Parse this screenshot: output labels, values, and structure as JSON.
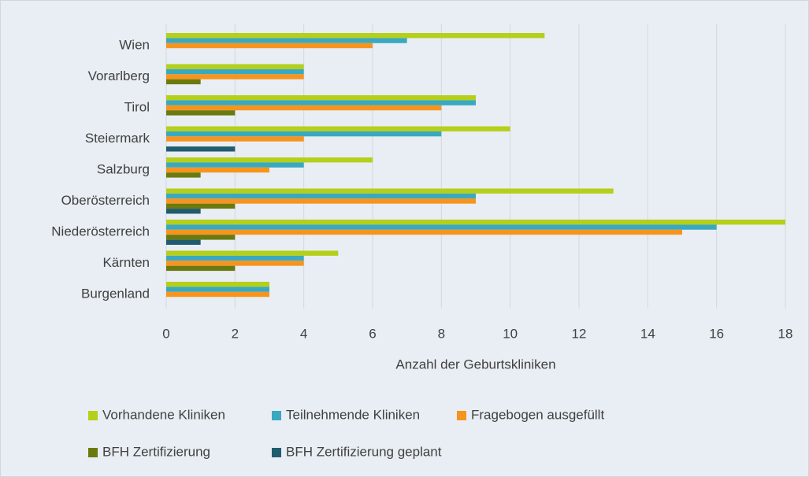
{
  "chart_data": {
    "type": "bar",
    "orientation": "horizontal",
    "x_label": "Anzahl der Geburtskliniken",
    "categories": [
      "Wien",
      "Vorarlberg",
      "Tirol",
      "Steiermark",
      "Salzburg",
      "Oberösterreich",
      "Niederösterreich",
      "Kärnten",
      "Burgenland"
    ],
    "series": [
      {
        "name": "Vorhandene Kliniken",
        "color": "#b5cf1a",
        "values": [
          11,
          4,
          9,
          10,
          6,
          13,
          18,
          5,
          3
        ]
      },
      {
        "name": "Teilnehmende Kliniken",
        "color": "#3aa9c0",
        "values": [
          7,
          4,
          9,
          8,
          4,
          9,
          16,
          4,
          3
        ]
      },
      {
        "name": "Fragebogen ausgefüllt",
        "color": "#f7941d",
        "values": [
          6,
          4,
          8,
          4,
          3,
          9,
          15,
          4,
          3
        ]
      },
      {
        "name": "BFH Zertifizierung",
        "color": "#6b7a0f",
        "values": [
          0,
          1,
          2,
          0,
          1,
          2,
          2,
          2,
          0
        ]
      },
      {
        "name": "BFH Zertifizierung geplant",
        "color": "#1f5c6e",
        "values": [
          0,
          0,
          0,
          2,
          0,
          1,
          1,
          0,
          0
        ]
      }
    ],
    "xlim": [
      0,
      18
    ],
    "xticks": [
      0,
      2,
      4,
      6,
      8,
      10,
      12,
      14,
      16,
      18
    ],
    "grid": true,
    "legend": "bottom"
  }
}
